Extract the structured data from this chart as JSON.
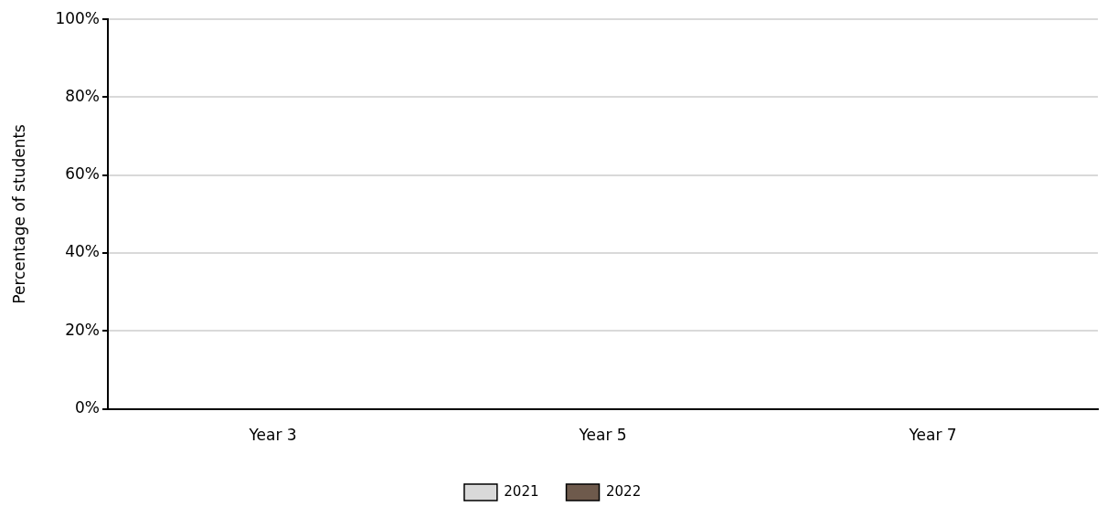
{
  "chart_data": {
    "type": "bar",
    "ylabel": "Percentage of students",
    "categories": [
      "Year 3",
      "Year 5",
      "Year 7"
    ],
    "series": [
      {
        "name": "2021",
        "color": "#d9d9d9",
        "values": [
          null,
          null,
          null
        ]
      },
      {
        "name": "2022",
        "color": "#6e5a4c",
        "values": [
          null,
          null,
          null
        ]
      }
    ],
    "ylim": [
      0,
      100
    ],
    "yticks": [
      {
        "value": 0,
        "label": "0%"
      },
      {
        "value": 20,
        "label": "20%"
      },
      {
        "value": 40,
        "label": "40%"
      },
      {
        "value": 60,
        "label": "60%"
      },
      {
        "value": 80,
        "label": "80%"
      },
      {
        "value": 100,
        "label": "100%"
      }
    ],
    "grid": "y",
    "legend": "bottom"
  }
}
